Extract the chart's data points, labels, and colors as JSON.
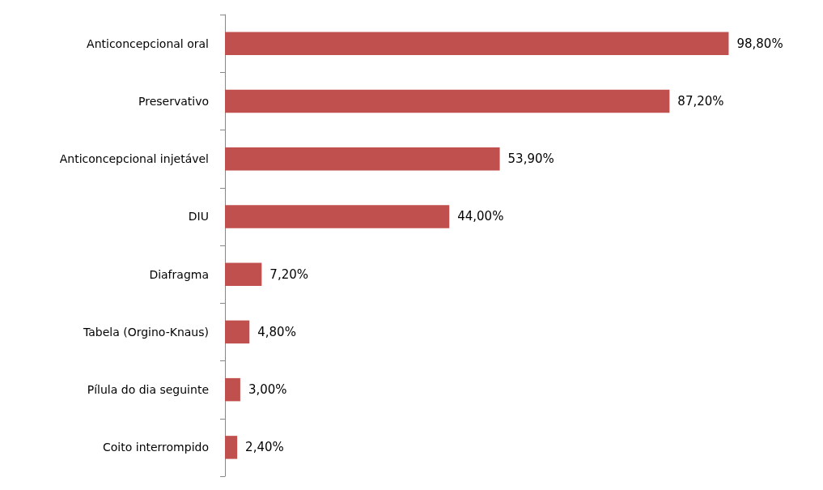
{
  "chart_data": {
    "type": "bar",
    "orientation": "horizontal",
    "categories": [
      "Anticoncepcional oral",
      "Preservativo",
      "Anticoncepcional injetável",
      "DIU",
      "Diafragma",
      "Tabela (Orgino-Knaus)",
      "Pílula do dia seguinte",
      "Coito interrompido"
    ],
    "values": [
      98.8,
      87.2,
      53.9,
      44.0,
      7.2,
      4.8,
      3.0,
      2.4
    ],
    "value_labels": [
      "98,80%",
      "87,20%",
      "53,90%",
      "44,00%",
      "7,20%",
      "4,80%",
      "3,00%",
      "2,40%"
    ],
    "color": "#c0504d"
  }
}
